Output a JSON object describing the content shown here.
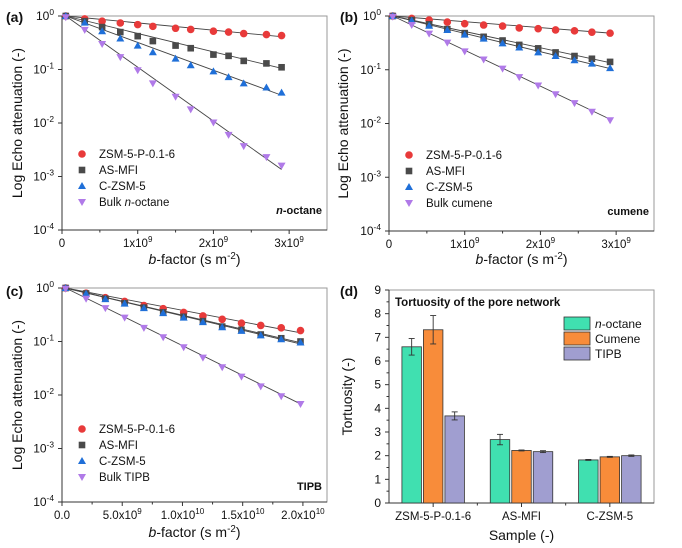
{
  "chart_data": [
    {
      "panel_label": "(a)",
      "type": "scatter",
      "xlabel": "b-factor (s m-2)",
      "ylabel": "Log Echo attenuation (-)",
      "yscale": "log",
      "xlim": [
        0,
        3500000000.0
      ],
      "ylim": [
        0.0001,
        1
      ],
      "x_ticks": [
        {
          "v": 0,
          "label": "0"
        },
        {
          "v": 1000000000.0,
          "label": "1x10",
          "sup": "9"
        },
        {
          "v": 2000000000.0,
          "label": "2x10",
          "sup": "9"
        },
        {
          "v": 3000000000.0,
          "label": "3x10",
          "sup": "9"
        }
      ],
      "y_ticks": [
        {
          "v": 1,
          "sup": "0"
        },
        {
          "v": 0.1,
          "sup": "-1"
        },
        {
          "v": 0.01,
          "sup": "-2"
        },
        {
          "v": 0.001,
          "sup": "-3"
        },
        {
          "v": 0.0001,
          "sup": "-4"
        }
      ],
      "annotation": "n-octane",
      "legend_position": "lower-left",
      "series": [
        {
          "name": "ZSM-5-P-0.1-6",
          "marker": "circle",
          "color": "#e83a3a",
          "x": [
            50000000.0,
            300000000.0,
            530000000.0,
            770000000.0,
            1000000000.0,
            1200000000.0,
            1500000000.0,
            1700000000.0,
            2000000000.0,
            2200000000.0,
            2400000000.0,
            2700000000.0,
            2900000000.0
          ],
          "y": [
            1.0,
            0.88,
            0.8,
            0.74,
            0.69,
            0.64,
            0.59,
            0.56,
            0.52,
            0.5,
            0.47,
            0.45,
            0.43
          ],
          "fit_end": 0.41
        },
        {
          "name": "AS-MFI",
          "marker": "square",
          "color": "#4a4a4a",
          "x": [
            50000000.0,
            300000000.0,
            530000000.0,
            770000000.0,
            1000000000.0,
            1200000000.0,
            1500000000.0,
            1700000000.0,
            2000000000.0,
            2200000000.0,
            2400000000.0,
            2700000000.0,
            2900000000.0
          ],
          "y": [
            1.0,
            0.8,
            0.62,
            0.5,
            0.42,
            0.34,
            0.28,
            0.25,
            0.19,
            0.18,
            0.145,
            0.13,
            0.11
          ],
          "fit_end": 0.105
        },
        {
          "name": "C-ZSM-5",
          "marker": "triangle-up",
          "color": "#1f6fd8",
          "x": [
            50000000.0,
            300000000.0,
            530000000.0,
            770000000.0,
            1000000000.0,
            1200000000.0,
            1500000000.0,
            1700000000.0,
            2000000000.0,
            2200000000.0,
            2400000000.0,
            2700000000.0,
            2900000000.0
          ],
          "y": [
            1.0,
            0.75,
            0.52,
            0.38,
            0.28,
            0.21,
            0.16,
            0.12,
            0.092,
            0.072,
            0.055,
            0.046,
            0.037
          ],
          "fit_end": 0.033
        },
        {
          "name": "Bulk n-octane",
          "marker": "triangle-down",
          "color": "#b07ae8",
          "x": [
            50000000.0,
            300000000.0,
            530000000.0,
            770000000.0,
            1000000000.0,
            1200000000.0,
            1500000000.0,
            1700000000.0,
            2000000000.0,
            2200000000.0,
            2400000000.0,
            2700000000.0,
            2900000000.0
          ],
          "y": [
            0.95,
            0.55,
            0.3,
            0.17,
            0.097,
            0.055,
            0.031,
            0.018,
            0.0102,
            0.006,
            0.0037,
            0.0023,
            0.0016
          ],
          "fit_end": 0.00135
        }
      ]
    },
    {
      "panel_label": "(b)",
      "type": "scatter",
      "xlabel": "b-factor (s m-2)",
      "ylabel": "Log Echo attenuation (-)",
      "yscale": "log",
      "xlim": [
        0,
        3500000000.0
      ],
      "ylim": [
        0.0001,
        1
      ],
      "x_ticks": [
        {
          "v": 0,
          "label": "0"
        },
        {
          "v": 1000000000.0,
          "label": "1x10",
          "sup": "9"
        },
        {
          "v": 2000000000.0,
          "label": "2x10",
          "sup": "9"
        },
        {
          "v": 3000000000.0,
          "label": "3x10",
          "sup": "9"
        }
      ],
      "y_ticks": [
        {
          "v": 1,
          "sup": "0"
        },
        {
          "v": 0.1,
          "sup": "-1"
        },
        {
          "v": 0.01,
          "sup": "-2"
        },
        {
          "v": 0.001,
          "sup": "-3"
        },
        {
          "v": 0.0001,
          "sup": "-4"
        }
      ],
      "annotation": "cumene",
      "legend_position": "lower-left",
      "series": [
        {
          "name": "ZSM-5-P-0.1-6",
          "marker": "circle",
          "color": "#e83a3a",
          "x": [
            50000000.0,
            300000000.0,
            530000000.0,
            770000000.0,
            1000000000.0,
            1250000000.0,
            1500000000.0,
            1720000000.0,
            1970000000.0,
            2200000000.0,
            2450000000.0,
            2680000000.0,
            2920000000.0
          ],
          "y": [
            1.0,
            0.9,
            0.84,
            0.77,
            0.72,
            0.68,
            0.65,
            0.6,
            0.58,
            0.55,
            0.53,
            0.5,
            0.48
          ],
          "fit_end": 0.48
        },
        {
          "name": "AS-MFI",
          "marker": "square",
          "color": "#4a4a4a",
          "x": [
            50000000.0,
            300000000.0,
            530000000.0,
            770000000.0,
            1000000000.0,
            1250000000.0,
            1500000000.0,
            1720000000.0,
            1970000000.0,
            2200000000.0,
            2450000000.0,
            2680000000.0,
            2920000000.0
          ],
          "y": [
            1.0,
            0.84,
            0.7,
            0.57,
            0.48,
            0.41,
            0.35,
            0.29,
            0.25,
            0.21,
            0.18,
            0.16,
            0.14
          ],
          "fit_end": 0.135
        },
        {
          "name": "C-ZSM-5",
          "marker": "triangle-up",
          "color": "#1f6fd8",
          "x": [
            50000000.0,
            300000000.0,
            530000000.0,
            770000000.0,
            1000000000.0,
            1250000000.0,
            1500000000.0,
            1720000000.0,
            1970000000.0,
            2200000000.0,
            2450000000.0,
            2680000000.0,
            2920000000.0
          ],
          "y": [
            1.0,
            0.82,
            0.66,
            0.55,
            0.45,
            0.38,
            0.31,
            0.26,
            0.21,
            0.18,
            0.15,
            0.13,
            0.107
          ],
          "fit_end": 0.105
        },
        {
          "name": "Bulk cumene",
          "marker": "triangle-down",
          "color": "#b07ae8",
          "x": [
            50000000.0,
            300000000.0,
            530000000.0,
            770000000.0,
            1000000000.0,
            1250000000.0,
            1500000000.0,
            1720000000.0,
            1970000000.0,
            2200000000.0,
            2450000000.0,
            2680000000.0,
            2920000000.0
          ],
          "y": [
            0.97,
            0.68,
            0.47,
            0.32,
            0.22,
            0.155,
            0.105,
            0.073,
            0.051,
            0.035,
            0.024,
            0.0165,
            0.0115
          ],
          "fit_end": 0.012
        }
      ]
    },
    {
      "panel_label": "(c)",
      "type": "scatter",
      "xlabel": "b-factor (s m-2)",
      "ylabel": "Log Echo attenuation (-)",
      "yscale": "log",
      "xlim": [
        0,
        22000000000.0
      ],
      "ylim": [
        0.0001,
        1
      ],
      "x_ticks": [
        {
          "v": 0,
          "label": "0.0"
        },
        {
          "v": 5000000000.0,
          "label": "5.0x10",
          "sup": "9"
        },
        {
          "v": 10000000000.0,
          "label": "1.0x10",
          "sup": "10"
        },
        {
          "v": 15000000000.0,
          "label": "1.5x10",
          "sup": "10"
        },
        {
          "v": 20000000000.0,
          "label": "2.0x10",
          "sup": "10"
        }
      ],
      "y_ticks": [
        {
          "v": 1,
          "sup": "0"
        },
        {
          "v": 0.1,
          "sup": "-1"
        },
        {
          "v": 0.01,
          "sup": "-2"
        },
        {
          "v": 0.001,
          "sup": "-3"
        },
        {
          "v": 0.0001,
          "sup": "-4"
        }
      ],
      "annotation": "TIPB",
      "legend_position": "lower-left",
      "series": [
        {
          "name": "ZSM-5-P-0.1-6",
          "marker": "circle",
          "color": "#e83a3a",
          "x": [
            300000000.0,
            2000000000.0,
            3600000000.0,
            5200000000.0,
            6800000000.0,
            8400000000.0,
            10100000000.0,
            11700000000.0,
            13300000000.0,
            14900000000.0,
            16500000000.0,
            18200000000.0,
            19800000000.0
          ],
          "y": [
            1.0,
            0.8,
            0.66,
            0.56,
            0.47,
            0.41,
            0.35,
            0.3,
            0.26,
            0.22,
            0.2,
            0.18,
            0.16
          ],
          "fit_end": 0.145
        },
        {
          "name": "AS-MFI",
          "marker": "square",
          "color": "#4a4a4a",
          "x": [
            300000000.0,
            2000000000.0,
            3600000000.0,
            5200000000.0,
            6800000000.0,
            8400000000.0,
            10100000000.0,
            11700000000.0,
            13300000000.0,
            14900000000.0,
            16500000000.0,
            18200000000.0,
            19800000000.0
          ],
          "y": [
            1.0,
            0.79,
            0.63,
            0.52,
            0.43,
            0.35,
            0.29,
            0.24,
            0.19,
            0.165,
            0.135,
            0.115,
            0.1
          ],
          "fit_end": 0.095
        },
        {
          "name": "C-ZSM-5",
          "marker": "triangle-up",
          "color": "#1f6fd8",
          "x": [
            300000000.0,
            2000000000.0,
            3600000000.0,
            5200000000.0,
            6800000000.0,
            8400000000.0,
            10100000000.0,
            11700000000.0,
            13300000000.0,
            14900000000.0,
            16500000000.0,
            18200000000.0,
            19800000000.0
          ],
          "y": [
            1.0,
            0.78,
            0.62,
            0.51,
            0.42,
            0.34,
            0.28,
            0.23,
            0.185,
            0.158,
            0.13,
            0.11,
            0.096
          ],
          "fit_end": 0.09
        },
        {
          "name": "Bulk TIPB",
          "marker": "triangle-down",
          "color": "#b07ae8",
          "x": [
            300000000.0,
            2000000000.0,
            3600000000.0,
            5200000000.0,
            6800000000.0,
            8400000000.0,
            10100000000.0,
            11700000000.0,
            13300000000.0,
            14900000000.0,
            16500000000.0,
            18200000000.0,
            19800000000.0
          ],
          "y": [
            0.97,
            0.63,
            0.42,
            0.28,
            0.18,
            0.12,
            0.078,
            0.05,
            0.033,
            0.022,
            0.0145,
            0.0095,
            0.0068
          ],
          "fit_end": 0.0068
        }
      ]
    },
    {
      "panel_label": "(d)",
      "type": "bar",
      "title": "Tortuosity of the pore network",
      "xlabel": "Sample (-)",
      "ylabel": "Tortuosity (-)",
      "ylim": [
        0,
        9
      ],
      "y_ticks": [
        0,
        1,
        2,
        3,
        4,
        5,
        6,
        7,
        8,
        9
      ],
      "categories": [
        "ZSM-5-P-0.1-6",
        "AS-MFI",
        "C-ZSM-5"
      ],
      "legend_position": "top-right",
      "series": [
        {
          "name": "n-octane",
          "color": "#40e0b0",
          "values": [
            6.6,
            2.68,
            1.82
          ],
          "errors": [
            0.35,
            0.22,
            0.02
          ]
        },
        {
          "name": "Cumene",
          "color": "#f88c3a",
          "values": [
            7.32,
            2.22,
            1.95
          ],
          "errors": [
            0.6,
            0.02,
            0.02
          ]
        },
        {
          "name": "TIPB",
          "color": "#a09ed0",
          "values": [
            3.68,
            2.17,
            2.0
          ],
          "errors": [
            0.17,
            0.04,
            0.03
          ]
        }
      ]
    }
  ]
}
